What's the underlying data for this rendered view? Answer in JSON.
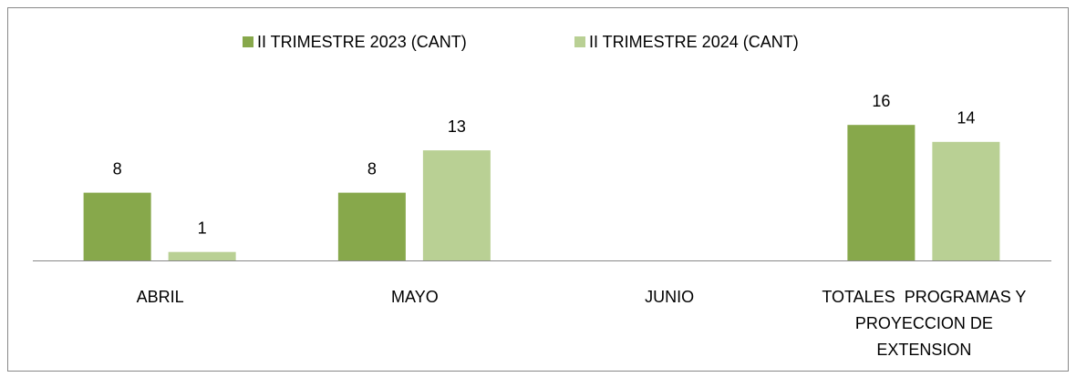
{
  "chart_data": {
    "type": "bar",
    "categories": [
      "ABRIL",
      "MAYO",
      "JUNIO",
      "TOTALES  PROGRAMAS Y PROYECCION DE EXTENSION"
    ],
    "series": [
      {
        "name": "II TRIMESTRE 2023 (CANT)",
        "color": "#87a84b",
        "values": [
          8,
          8,
          null,
          16
        ]
      },
      {
        "name": "II TRIMESTRE 2024 (CANT)",
        "color": "#b9d094",
        "values": [
          1,
          13,
          null,
          14
        ]
      }
    ],
    "legend": "top"
  }
}
